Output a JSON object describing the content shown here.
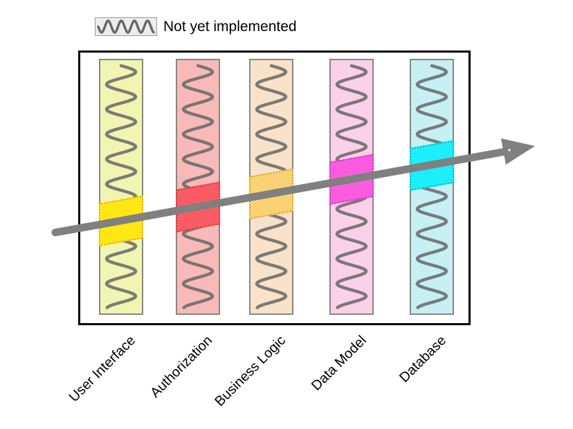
{
  "legend": {
    "label": "Not yet implemented",
    "swatch_icon": "wavy-line-pattern"
  },
  "pattern": {
    "stroke_color": "#666666",
    "meaning": "Not yet implemented"
  },
  "arrow": {
    "color": "#808080"
  },
  "layers": [
    {
      "label": "User Interface",
      "base_color": "#f0f5b2",
      "highlight_color": "#ffe812",
      "highlight_border": "#e8a010"
    },
    {
      "label": "Authorization",
      "base_color": "#f8bab8",
      "highlight_color": "#fb5c63",
      "highlight_border": "#cc3340"
    },
    {
      "label": "Business Logic",
      "base_color": "#f8e3ca",
      "highlight_color": "#fad274",
      "highlight_border": "#d69a30"
    },
    {
      "label": "Data Model",
      "base_color": "#fbd1e9",
      "highlight_color": "#fa5ce0",
      "highlight_border": "#cc30b8"
    },
    {
      "label": "Database",
      "base_color": "#c6f0f4",
      "highlight_color": "#1ceefa",
      "highlight_border": "#00b0c8"
    }
  ]
}
